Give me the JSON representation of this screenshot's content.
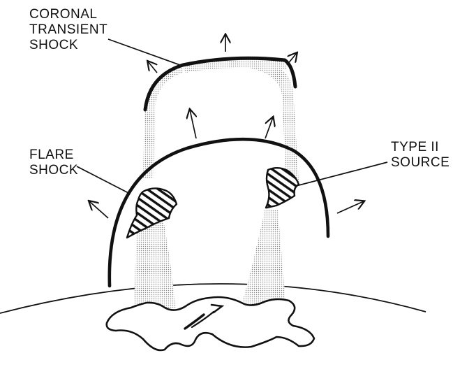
{
  "labels": {
    "coronal_transient_shock": [
      "CORONAL",
      "TRANSIENT",
      "SHOCK"
    ],
    "flare_shock": [
      "FLARE",
      "SHOCK"
    ],
    "type_ii_source": [
      "TYPE II",
      "SOURCE"
    ]
  },
  "colors": {
    "ink": "#111111",
    "stipple": "#b9b9b9"
  }
}
